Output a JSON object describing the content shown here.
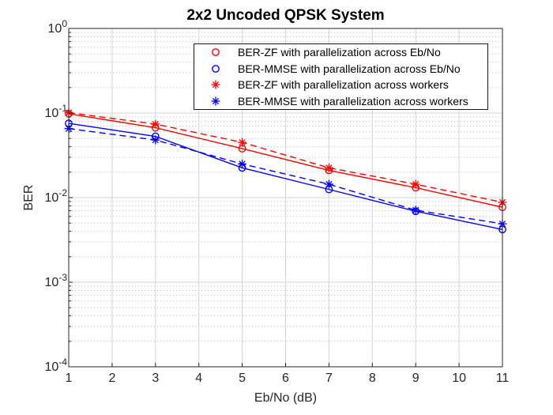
{
  "chart_data": {
    "type": "line",
    "title": "2x2 Uncoded QPSK System",
    "xlabel": "Eb/No (dB)",
    "ylabel": "BER",
    "x_scale": "linear",
    "y_scale": "log10",
    "xlim": [
      1,
      11
    ],
    "ylim": [
      0.0001,
      1
    ],
    "x_ticks": [
      1,
      2,
      3,
      4,
      5,
      6,
      7,
      8,
      9,
      10,
      11
    ],
    "y_tick_base": "10",
    "y_tick_exponents": [
      "0",
      "-1",
      "-2",
      "-3",
      "-4"
    ],
    "grid": "on",
    "minor_grid": "on",
    "legend_location": "upper-right-inside",
    "legend_shows": "markers-only",
    "x": [
      1,
      3,
      5,
      7,
      9,
      11
    ],
    "series": [
      {
        "name": "BER-ZF with parallelization across Eb/No",
        "color": "#ff0000",
        "marker": "circle",
        "line_style": "solid",
        "values": [
          0.098,
          0.067,
          0.038,
          0.021,
          0.0131,
          0.0077
        ]
      },
      {
        "name": "BER-MMSE with parallelization across Eb/No",
        "color": "#0000ff",
        "marker": "circle",
        "line_style": "solid",
        "values": [
          0.0755,
          0.053,
          0.0225,
          0.0125,
          0.0069,
          0.0042
        ]
      },
      {
        "name": "BER-ZF with parallelization across workers",
        "color": "#ff0000",
        "marker": "asterisk",
        "line_style": "dashed",
        "values": [
          0.101,
          0.074,
          0.045,
          0.0225,
          0.0144,
          0.0088
        ]
      },
      {
        "name": "BER-MMSE with parallelization across workers",
        "color": "#0000ff",
        "marker": "asterisk",
        "line_style": "dashed",
        "values": [
          0.0655,
          0.048,
          0.025,
          0.0144,
          0.0071,
          0.0049
        ]
      }
    ],
    "axis_color": "#262626",
    "grid_color": "#d4d4d4",
    "minor_grid_color": "#bfbfbf"
  }
}
